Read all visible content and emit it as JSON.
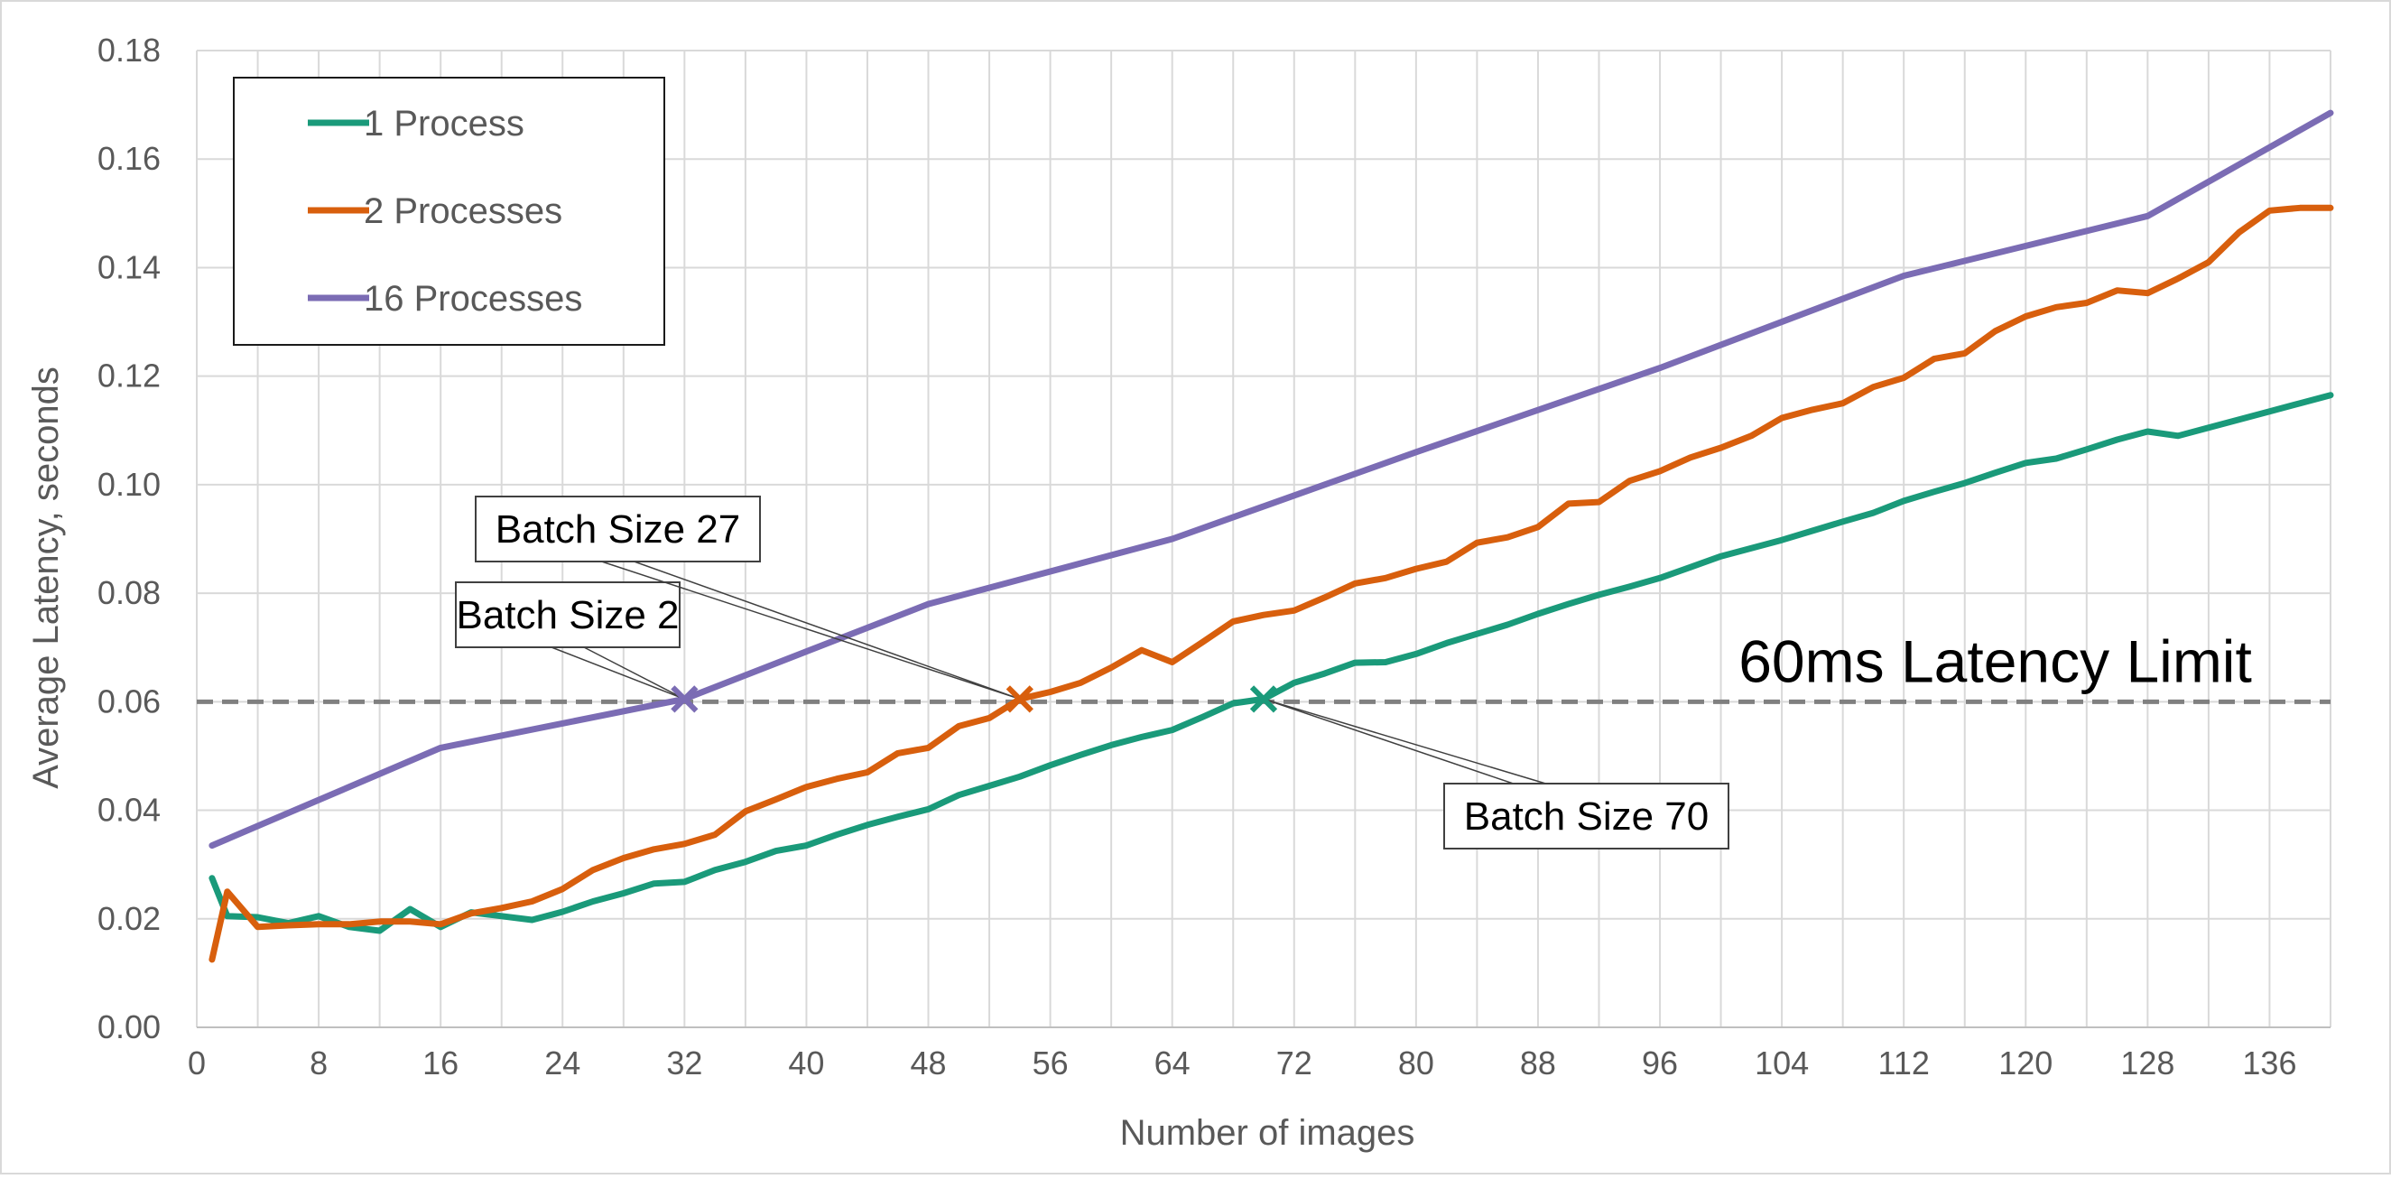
{
  "chart_data": {
    "type": "line",
    "title": "",
    "xlabel": "Number of images",
    "ylabel": "Average Latency, seconds",
    "xlim": [
      0,
      140
    ],
    "ylim": [
      0,
      0.18
    ],
    "x_ticks": [
      0,
      8,
      16,
      24,
      32,
      40,
      48,
      56,
      64,
      72,
      80,
      88,
      96,
      104,
      112,
      120,
      128,
      136
    ],
    "x_tick_labels": [
      "0",
      "8",
      "16",
      "24",
      "32",
      "40",
      "48",
      "56",
      "64",
      "72",
      "80",
      "88",
      "96",
      "104",
      "112",
      "120",
      "128",
      "136"
    ],
    "y_ticks": [
      0,
      0.02,
      0.04,
      0.06,
      0.08,
      0.1,
      0.12,
      0.14,
      0.16,
      0.18
    ],
    "y_tick_labels": [
      "0.00",
      "0.02",
      "0.04",
      "0.06",
      "0.08",
      "0.10",
      "0.12",
      "0.14",
      "0.16",
      "0.18"
    ],
    "grid": true,
    "legend_position": "top-left",
    "series": [
      {
        "name": "1 Process",
        "color": "#1a9a7a",
        "x": [
          1,
          2,
          4,
          6,
          8,
          10,
          12,
          14,
          16,
          18,
          20,
          22,
          24,
          26,
          28,
          30,
          32,
          34,
          36,
          38,
          40,
          42,
          44,
          46,
          48,
          50,
          52,
          54,
          56,
          58,
          60,
          62,
          64,
          66,
          68,
          70,
          72,
          74,
          76,
          78,
          80,
          82,
          84,
          86,
          88,
          90,
          92,
          94,
          96,
          98,
          100,
          102,
          104,
          106,
          108,
          110,
          112,
          114,
          116,
          118,
          120,
          122,
          124,
          126,
          128,
          130,
          132,
          134,
          136,
          138,
          140
        ],
        "values": [
          0.0275,
          0.0205,
          0.0203,
          0.0192,
          0.0205,
          0.0185,
          0.0178,
          0.0218,
          0.0185,
          0.0212,
          0.0205,
          0.0198,
          0.0213,
          0.0232,
          0.0247,
          0.0265,
          0.0268,
          0.029,
          0.0305,
          0.0325,
          0.0335,
          0.0355,
          0.0373,
          0.0388,
          0.0402,
          0.0428,
          0.0445,
          0.0462,
          0.0483,
          0.0502,
          0.052,
          0.0535,
          0.0548,
          0.0572,
          0.0597,
          0.0605,
          0.0635,
          0.0652,
          0.0672,
          0.0673,
          0.0688,
          0.0708,
          0.0725,
          0.0742,
          0.0762,
          0.078,
          0.0797,
          0.0812,
          0.0828,
          0.0848,
          0.0868,
          0.0883,
          0.0898,
          0.0915,
          0.0932,
          0.0948,
          0.097,
          0.0987,
          0.1003,
          0.1022,
          0.104,
          0.1048,
          0.1065,
          0.1083,
          0.1098,
          0.109,
          0.1105,
          0.112,
          0.1135,
          0.115,
          0.1165
        ]
      },
      {
        "name": "2 Processes",
        "color": "#d85f0d",
        "x": [
          1,
          2,
          4,
          6,
          8,
          10,
          12,
          14,
          16,
          18,
          20,
          22,
          24,
          26,
          28,
          30,
          32,
          34,
          36,
          38,
          40,
          42,
          44,
          46,
          48,
          50,
          52,
          54,
          56,
          58,
          60,
          62,
          64,
          66,
          68,
          70,
          72,
          74,
          76,
          78,
          80,
          82,
          84,
          86,
          88,
          90,
          92,
          94,
          96,
          98,
          100,
          102,
          104,
          106,
          108,
          110,
          112,
          114,
          116,
          118,
          120,
          122,
          124,
          126,
          128,
          130,
          132,
          134,
          136,
          138,
          140
        ],
        "values": [
          0.0125,
          0.025,
          0.0185,
          0.0188,
          0.019,
          0.019,
          0.0195,
          0.0195,
          0.019,
          0.021,
          0.022,
          0.0232,
          0.0255,
          0.029,
          0.0312,
          0.0328,
          0.0338,
          0.0355,
          0.0398,
          0.042,
          0.0443,
          0.0458,
          0.047,
          0.0505,
          0.0515,
          0.0555,
          0.057,
          0.0605,
          0.0618,
          0.0635,
          0.0663,
          0.0695,
          0.0673,
          0.071,
          0.0748,
          0.076,
          0.0768,
          0.0792,
          0.0818,
          0.0828,
          0.0845,
          0.0858,
          0.0893,
          0.0903,
          0.0922,
          0.0965,
          0.0968,
          0.1007,
          0.1025,
          0.105,
          0.1068,
          0.109,
          0.1123,
          0.1138,
          0.115,
          0.118,
          0.1197,
          0.1232,
          0.1242,
          0.1283,
          0.131,
          0.1327,
          0.1335,
          0.1358,
          0.1353,
          0.138,
          0.141,
          0.1465,
          0.1505,
          0.151,
          0.151
        ]
      },
      {
        "name": "16 Processes",
        "color": "#7b6cb4",
        "x": [
          1,
          16,
          32,
          48,
          64,
          80,
          96,
          112,
          128,
          140
        ],
        "values": [
          0.0335,
          0.0515,
          0.0605,
          0.078,
          0.09,
          0.106,
          0.1215,
          0.1385,
          0.1495,
          0.1685
        ]
      }
    ],
    "reference_line": {
      "y": 0.06,
      "label": "60ms Latency Limit",
      "color": "#808080",
      "style": "dashed"
    },
    "annotations": [
      {
        "label": "Batch Size 2",
        "x": 32,
        "y": 0.0605,
        "series": "16 Processes"
      },
      {
        "label": "Batch Size 27",
        "x": 54,
        "y": 0.0605,
        "series": "2 Processes"
      },
      {
        "label": "Batch Size 70",
        "x": 70,
        "y": 0.0605,
        "series": "1 Process"
      }
    ]
  }
}
